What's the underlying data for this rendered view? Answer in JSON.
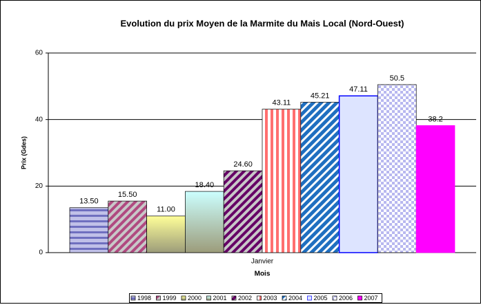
{
  "chart_data": {
    "type": "bar",
    "title": "Evolution du prix Moyen de la Marmite du Mais Local (Nord-Ouest)",
    "categories": [
      "Janvier"
    ],
    "x_label": "Mois",
    "y_label": "Prix (Gdes)",
    "ylim": [
      0,
      60
    ],
    "yticks": [
      0,
      20,
      40,
      60
    ],
    "grid": true,
    "legend": "bottom",
    "series": [
      {
        "name": "1998",
        "color": "#6f6fbf",
        "pattern": "hstripe",
        "values": [
          13.5
        ],
        "value_labels": [
          "13.50"
        ]
      },
      {
        "name": "1999",
        "color": "#b04a80",
        "pattern": "diag",
        "values": [
          15.5
        ],
        "value_labels": [
          "15.50"
        ]
      },
      {
        "name": "2000",
        "color": "#ffff99",
        "pattern": "gradient",
        "values": [
          11
        ],
        "value_labels": [
          "11.00"
        ]
      },
      {
        "name": "2001",
        "color": "#ccffff",
        "pattern": "gradient",
        "values": [
          18.4
        ],
        "value_labels": [
          "18.40"
        ]
      },
      {
        "name": "2002",
        "color": "#660066",
        "pattern": "diag",
        "values": [
          24.6
        ],
        "value_labels": [
          "24.60"
        ]
      },
      {
        "name": "2003",
        "color": "#ff6f6f",
        "pattern": "vstripe",
        "values": [
          43.11
        ],
        "value_labels": [
          "43.11"
        ]
      },
      {
        "name": "2004",
        "color": "#1f6fc0",
        "pattern": "diagwide",
        "values": [
          45.21
        ],
        "value_labels": [
          "45.21"
        ]
      },
      {
        "name": "2005",
        "color": "#0000ff",
        "pattern": "plain",
        "values": [
          47.11
        ],
        "value_labels": [
          "47.11"
        ]
      },
      {
        "name": "2006",
        "color": "#b8b8f0",
        "pattern": "check",
        "values": [
          50.5
        ],
        "value_labels": [
          "50.5"
        ]
      },
      {
        "name": "2007",
        "color": "#ff00ff",
        "pattern": "solid",
        "values": [
          38.2
        ],
        "value_labels": [
          "38.2"
        ]
      }
    ]
  }
}
